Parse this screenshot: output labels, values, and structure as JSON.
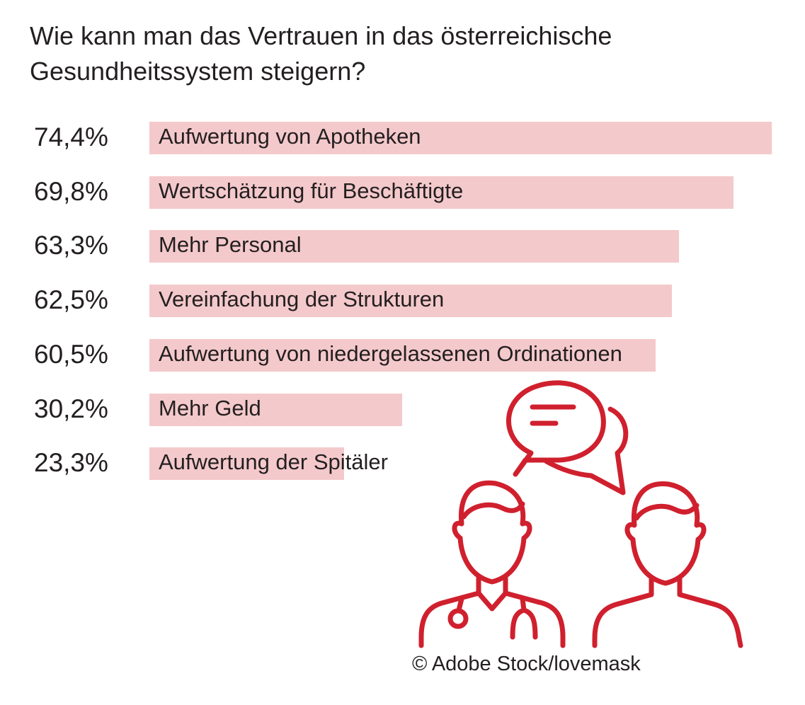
{
  "title": "Wie kann man das Vertrauen in das österreichische Gesundheitssystem steigern?",
  "credit": "© Adobe Stock/lovemask",
  "colors": {
    "bar": "#f4c9cb",
    "icon": "#d0202e",
    "text": "#231f20"
  },
  "illustration": {
    "icons": [
      "speech-bubbles-icon",
      "doctor-icon",
      "patient-icon"
    ]
  },
  "chart_data": {
    "type": "bar",
    "orientation": "horizontal",
    "title": "Wie kann man das Vertrauen in das österreichische Gesundheitssystem steigern?",
    "xlabel": "",
    "ylabel": "",
    "unit": "%",
    "xlim": [
      0,
      74.4
    ],
    "grid": false,
    "categories": [
      "Aufwertung von Apotheken",
      "Wertschätzung für Beschäftigte",
      "Mehr Personal",
      "Vereinfachung der Strukturen",
      "Aufwertung von niedergelassenen Ordinationen",
      "Mehr Geld",
      "Aufwertung der Spitäler"
    ],
    "values": [
      74.4,
      69.8,
      63.3,
      62.5,
      60.5,
      30.2,
      23.3
    ],
    "value_labels": [
      "74,4%",
      "69,8%",
      "63,3%",
      "62,5%",
      "60,5%",
      "30,2%",
      "23,3%"
    ]
  }
}
